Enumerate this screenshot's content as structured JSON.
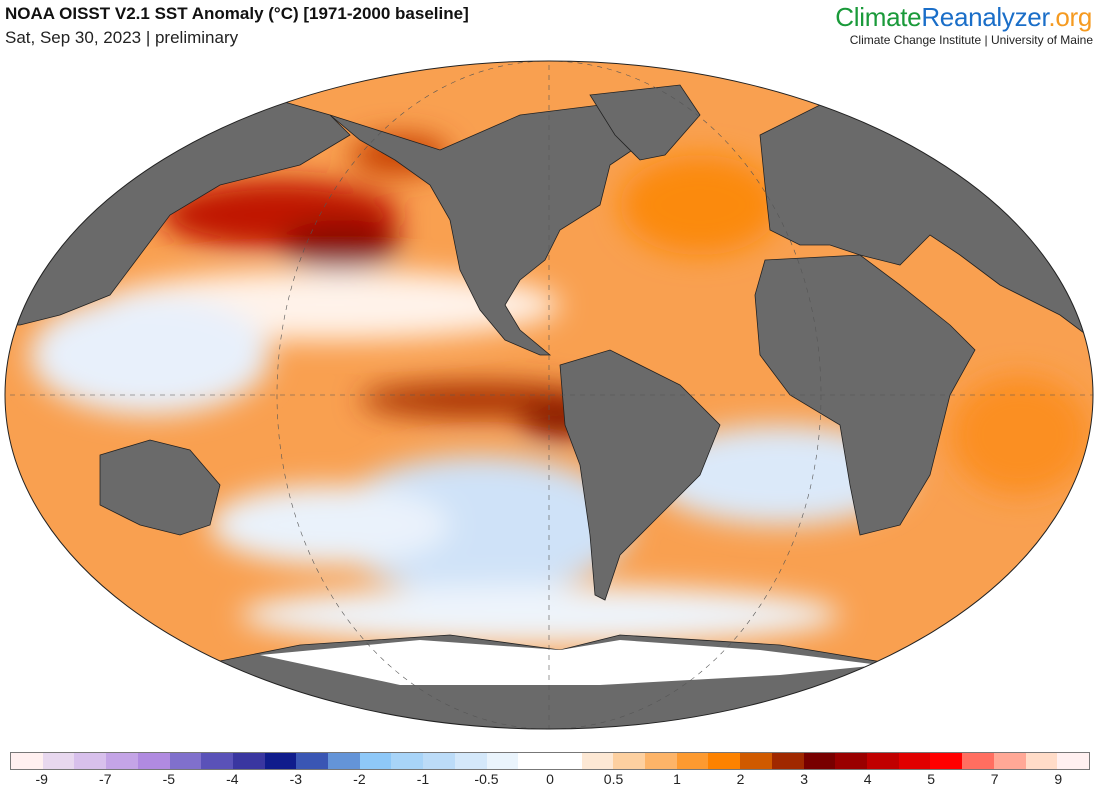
{
  "header": {
    "title": "NOAA OISST V2.1 SST Anomaly (°C) [1971-2000 baseline]",
    "subtitle": "Sat, Sep 30, 2023 | preliminary"
  },
  "logo": {
    "part1": "Climate",
    "part2": "Reanalyzer",
    "part3": ".org",
    "institution": "Climate Change Institute | University of Maine"
  },
  "colorbar": {
    "colors": [
      "#fff0f0",
      "#e8d8ef",
      "#d8c0ec",
      "#c4a4e6",
      "#b08ae0",
      "#8070cc",
      "#5a52b8",
      "#3a36a0",
      "#101c8c",
      "#3a56b4",
      "#6494d8",
      "#8ec8f8",
      "#a8d4f8",
      "#bcdcf8",
      "#d4e8fa",
      "#eaf4fc",
      "#ffffff",
      "#ffffff",
      "#fde8d4",
      "#fdd0a0",
      "#fdb468",
      "#fd9a30",
      "#fd8200",
      "#d05a00",
      "#a02800",
      "#780000",
      "#9a0000",
      "#c00000",
      "#e00000",
      "#ff0000",
      "#ff6e60",
      "#ffa896",
      "#ffdcc8",
      "#fff0f0"
    ],
    "tick_labels": [
      "-9",
      "-7",
      "-5",
      "-4",
      "-3",
      "-2",
      "-1",
      "-0.5",
      "0",
      "0.5",
      "1",
      "2",
      "3",
      "4",
      "5",
      "7",
      "9"
    ]
  },
  "map": {
    "land_color": "#6a6a6a",
    "ice_color": "#ffffff",
    "warm_color": "#f98a2a",
    "hot_color": "#b01a00"
  }
}
